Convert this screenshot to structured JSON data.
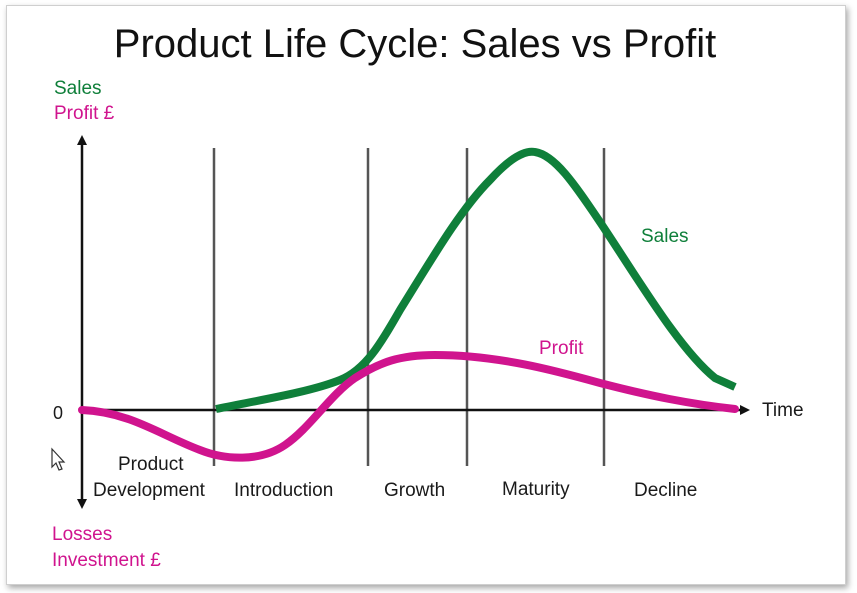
{
  "title": "Product Life Cycle: Sales vs Profit",
  "y_axis": {
    "positive_label_1": "Sales",
    "positive_label_2": "Profit £",
    "negative_label_1": "Losses",
    "negative_label_2": "Investment £",
    "zero_label": "0"
  },
  "x_axis": {
    "label": "Time"
  },
  "stages": {
    "product_development_1": "Product",
    "product_development_2": "Development",
    "introduction": "Introduction",
    "growth": "Growth",
    "maturity": "Maturity",
    "decline": "Decline"
  },
  "curves": {
    "sales_label": "Sales",
    "profit_label": "Profit"
  },
  "colors": {
    "sales": "#0f7f3a",
    "profit": "#d0148e",
    "axes": "#111111",
    "dividers": "#555555"
  },
  "icons": {
    "cursor": "mouse-pointer-icon"
  }
}
